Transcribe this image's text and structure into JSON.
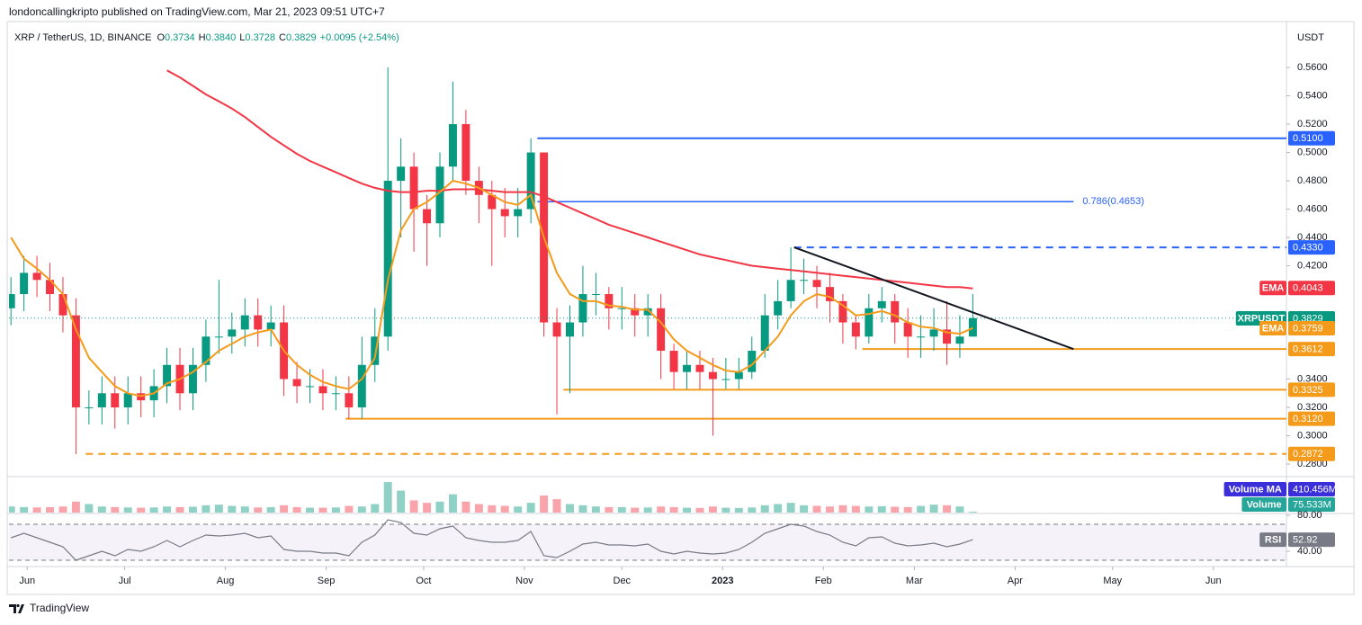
{
  "header": {
    "byline": "londoncallingkripto published on TradingView.com, Mar 21, 2023 09:51 UTC+7",
    "symbol": "XRP / TetherUS, 1D, BINANCE",
    "ohlc": [
      {
        "key": "O",
        "value": "0.3734"
      },
      {
        "key": "H",
        "value": "0.3840"
      },
      {
        "key": "L",
        "value": "0.3728"
      },
      {
        "key": "C",
        "value": "0.3829"
      }
    ],
    "change": "+0.0095 (+2.54%)",
    "currency": "USDT"
  },
  "footer": {
    "brand": "TradingView"
  },
  "chart_data": {
    "type": "candlestick",
    "up_color": "#089981",
    "down_color": "#f23645",
    "x": [
      -5,
      -1,
      3,
      7,
      11,
      15,
      19,
      23,
      27,
      31,
      35,
      39,
      43,
      47,
      51,
      55,
      59,
      63,
      67,
      71,
      75,
      79,
      83,
      87,
      91,
      95,
      99,
      103,
      107,
      111,
      115,
      119,
      123,
      127,
      131,
      135,
      139,
      143,
      147,
      151,
      155,
      159,
      163,
      167,
      171,
      175,
      179,
      183,
      187,
      191,
      195,
      199,
      203,
      207,
      211,
      215,
      219,
      223,
      227,
      231,
      235,
      239,
      243,
      247,
      251,
      255,
      259,
      263,
      267,
      271,
      275,
      279,
      283,
      287,
      291
    ],
    "xlim": [
      -5.6,
      387.5
    ],
    "xticks": [
      {
        "value": 0,
        "label": "Jun"
      },
      {
        "value": 30,
        "label": "Jul"
      },
      {
        "value": 61,
        "label": "Aug"
      },
      {
        "value": 92,
        "label": "Sep"
      },
      {
        "value": 122,
        "label": "Oct"
      },
      {
        "value": 153,
        "label": "Nov"
      },
      {
        "value": 183,
        "label": "Dec"
      },
      {
        "value": 214,
        "label": "2023"
      },
      {
        "value": 245,
        "label": "Feb"
      },
      {
        "value": 273,
        "label": "Mar"
      },
      {
        "value": 304,
        "label": "Apr"
      },
      {
        "value": 334,
        "label": "May"
      },
      {
        "value": 365,
        "label": "Jun"
      }
    ],
    "ylim": [
      0.2724,
      0.5886
    ],
    "yticks": [
      {
        "value": 0.56,
        "label": "0.5600"
      },
      {
        "value": 0.54,
        "label": "0.5400"
      },
      {
        "value": 0.52,
        "label": "0.5200"
      },
      {
        "value": 0.5,
        "label": "0.5000"
      },
      {
        "value": 0.48,
        "label": "0.4800"
      },
      {
        "value": 0.46,
        "label": "0.4600"
      },
      {
        "value": 0.44,
        "label": "0.4400"
      },
      {
        "value": 0.42,
        "label": "0.4200"
      },
      {
        "value": 0.34,
        "label": "0.3400"
      },
      {
        "value": 0.32,
        "label": "0.3200"
      },
      {
        "value": 0.3,
        "label": "0.3000"
      },
      {
        "value": 0.28,
        "label": "0.2800"
      }
    ],
    "candles": {
      "open": [
        0.39,
        0.4,
        0.415,
        0.41,
        0.4,
        0.385,
        0.32,
        0.32,
        0.33,
        0.32,
        0.33,
        0.325,
        0.335,
        0.35,
        0.33,
        0.35,
        0.37,
        0.37,
        0.375,
        0.385,
        0.375,
        0.38,
        0.34,
        0.335,
        0.335,
        0.33,
        0.33,
        0.32,
        0.35,
        0.37,
        0.48,
        0.49,
        0.46,
        0.45,
        0.49,
        0.52,
        0.48,
        0.47,
        0.46,
        0.455,
        0.46,
        0.5,
        0.38,
        0.37,
        0.38,
        0.4,
        0.4,
        0.39,
        0.39,
        0.385,
        0.39,
        0.36,
        0.345,
        0.35,
        0.345,
        0.34,
        0.34,
        0.345,
        0.36,
        0.385,
        0.395,
        0.41,
        0.41,
        0.405,
        0.395,
        0.38,
        0.37,
        0.39,
        0.395,
        0.38,
        0.37,
        0.37,
        0.375,
        0.365,
        0.37
      ],
      "high": [
        0.412,
        0.427,
        0.427,
        0.422,
        0.412,
        0.397,
        0.332,
        0.342,
        0.342,
        0.342,
        0.342,
        0.347,
        0.362,
        0.362,
        0.362,
        0.382,
        0.41,
        0.387,
        0.397,
        0.397,
        0.392,
        0.392,
        0.352,
        0.347,
        0.347,
        0.342,
        0.342,
        0.37,
        0.39,
        0.56,
        0.51,
        0.5,
        0.47,
        0.5,
        0.55,
        0.53,
        0.49,
        0.48,
        0.475,
        0.475,
        0.51,
        0.5,
        0.39,
        0.392,
        0.42,
        0.415,
        0.405,
        0.405,
        0.4,
        0.4,
        0.4,
        0.365,
        0.36,
        0.36,
        0.355,
        0.355,
        0.355,
        0.37,
        0.4,
        0.41,
        0.433,
        0.425,
        0.42,
        0.415,
        0.4,
        0.385,
        0.4,
        0.405,
        0.4,
        0.39,
        0.385,
        0.39,
        0.395,
        0.385,
        0.4
      ],
      "low": [
        0.378,
        0.388,
        0.398,
        0.388,
        0.373,
        0.287,
        0.308,
        0.308,
        0.305,
        0.308,
        0.313,
        0.313,
        0.323,
        0.318,
        0.318,
        0.338,
        0.358,
        0.358,
        0.363,
        0.363,
        0.363,
        0.328,
        0.323,
        0.323,
        0.318,
        0.318,
        0.312,
        0.312,
        0.338,
        0.36,
        0.44,
        0.43,
        0.42,
        0.44,
        0.48,
        0.47,
        0.45,
        0.42,
        0.44,
        0.44,
        0.45,
        0.37,
        0.315,
        0.33,
        0.37,
        0.385,
        0.375,
        0.375,
        0.37,
        0.37,
        0.34,
        0.333,
        0.333,
        0.333,
        0.3,
        0.333,
        0.333,
        0.34,
        0.355,
        0.375,
        0.39,
        0.4,
        0.39,
        0.38,
        0.365,
        0.361,
        0.365,
        0.38,
        0.365,
        0.355,
        0.355,
        0.36,
        0.35,
        0.355,
        0.37
      ],
      "close": [
        0.4,
        0.415,
        0.41,
        0.4,
        0.385,
        0.32,
        0.32,
        0.33,
        0.32,
        0.33,
        0.325,
        0.335,
        0.35,
        0.33,
        0.35,
        0.37,
        0.37,
        0.375,
        0.385,
        0.375,
        0.38,
        0.34,
        0.335,
        0.335,
        0.33,
        0.33,
        0.32,
        0.35,
        0.37,
        0.48,
        0.49,
        0.46,
        0.45,
        0.49,
        0.52,
        0.48,
        0.47,
        0.46,
        0.455,
        0.46,
        0.5,
        0.38,
        0.37,
        0.38,
        0.4,
        0.4,
        0.39,
        0.39,
        0.385,
        0.39,
        0.36,
        0.345,
        0.35,
        0.345,
        0.34,
        0.34,
        0.345,
        0.36,
        0.385,
        0.395,
        0.41,
        0.41,
        0.405,
        0.395,
        0.38,
        0.37,
        0.39,
        0.395,
        0.38,
        0.37,
        0.37,
        0.375,
        0.365,
        0.37,
        0.383
      ]
    },
    "series": [
      {
        "name": "EMA",
        "color": "#f23645",
        "values": [
          null,
          null,
          null,
          null,
          null,
          null,
          null,
          null,
          null,
          null,
          null,
          null,
          0.558,
          0.553,
          0.547,
          0.541,
          0.536,
          0.531,
          0.525,
          0.518,
          0.511,
          0.505,
          0.499,
          0.494,
          0.49,
          0.486,
          0.482,
          0.478,
          0.475,
          0.473,
          0.472,
          0.472,
          0.473,
          0.473,
          0.474,
          0.474,
          0.474,
          0.473,
          0.472,
          0.472,
          0.472,
          0.469,
          0.465,
          0.461,
          0.457,
          0.453,
          0.449,
          0.446,
          0.443,
          0.44,
          0.437,
          0.434,
          0.431,
          0.428,
          0.426,
          0.424,
          0.422,
          0.42,
          0.419,
          0.418,
          0.417,
          0.416,
          0.415,
          0.414,
          0.413,
          0.412,
          0.411,
          0.41,
          0.409,
          0.408,
          0.407,
          0.406,
          0.405,
          0.405,
          0.404
        ]
      },
      {
        "name": "EMA",
        "color": "#f59b1b",
        "values": [
          0.44,
          0.425,
          0.418,
          0.41,
          0.4,
          0.375,
          0.355,
          0.345,
          0.335,
          0.33,
          0.328,
          0.33,
          0.337,
          0.34,
          0.345,
          0.352,
          0.36,
          0.365,
          0.37,
          0.373,
          0.375,
          0.36,
          0.35,
          0.343,
          0.338,
          0.335,
          0.333,
          0.34,
          0.355,
          0.41,
          0.445,
          0.46,
          0.465,
          0.472,
          0.48,
          0.478,
          0.475,
          0.47,
          0.465,
          0.463,
          0.47,
          0.44,
          0.415,
          0.4,
          0.395,
          0.395,
          0.392,
          0.391,
          0.389,
          0.389,
          0.38,
          0.368,
          0.36,
          0.355,
          0.35,
          0.346,
          0.345,
          0.35,
          0.36,
          0.37,
          0.385,
          0.395,
          0.4,
          0.398,
          0.392,
          0.385,
          0.386,
          0.388,
          0.385,
          0.38,
          0.377,
          0.376,
          0.373,
          0.372,
          0.376
        ]
      }
    ],
    "levels": [
      {
        "value": 0.51,
        "label": "0.5100",
        "color": "#2962ff",
        "dash": false,
        "from": 157
      },
      {
        "value": 0.433,
        "label": "0.4330",
        "color": "#2962ff",
        "dash": true,
        "from": 236
      },
      {
        "value": 0.3612,
        "label": "0.3612",
        "color": "#f59b1b",
        "dash": false,
        "from": 257
      },
      {
        "value": 0.3325,
        "label": "0.3325",
        "color": "#f59b1b",
        "dash": false,
        "from": 165
      },
      {
        "value": 0.312,
        "label": "0.3120",
        "color": "#f59b1b",
        "dash": false,
        "from": 98
      },
      {
        "value": 0.2872,
        "label": "0.2872",
        "color": "#f59b1b",
        "dash": true,
        "from": 18
      }
    ],
    "fib": {
      "value": 0.4653,
      "label": "0.786(0.4653)",
      "color": "#2962ff",
      "from": 157,
      "to": 322
    },
    "trendline": {
      "x": [
        236,
        322
      ],
      "y": [
        0.433,
        0.3612
      ],
      "color": "#131722"
    },
    "price_badges": [
      {
        "name": "EMA",
        "label": "0.4043",
        "value": 0.4043,
        "color": "#f23645"
      },
      {
        "name": "XRPUSDT",
        "label": "0.3829",
        "value": 0.3829,
        "color": "#089981"
      },
      {
        "name": "EMA",
        "label": "0.3759",
        "value": 0.3759,
        "color": "#f59b1b"
      }
    ],
    "volume": {
      "ylim": [
        0,
        2800
      ],
      "values": [
        500,
        450,
        420,
        450,
        500,
        900,
        700,
        500,
        450,
        420,
        400,
        420,
        500,
        450,
        480,
        600,
        650,
        550,
        500,
        420,
        450,
        600,
        450,
        400,
        400,
        420,
        550,
        500,
        700,
        2500,
        1800,
        1000,
        800,
        900,
        1500,
        900,
        700,
        600,
        550,
        500,
        800,
        1400,
        1100,
        700,
        600,
        500,
        450,
        450,
        400,
        420,
        500,
        450,
        400,
        380,
        500,
        400,
        380,
        420,
        600,
        700,
        800,
        600,
        550,
        500,
        600,
        550,
        500,
        520,
        480,
        450,
        550,
        650,
        600,
        500,
        75.533
      ],
      "badges": [
        {
          "name": "Volume MA",
          "label": "410.456M",
          "color": "#3b2fd9"
        },
        {
          "name": "Volume",
          "label": "75.533M",
          "color": "#26a69a"
        }
      ]
    },
    "rsi": {
      "ylim": [
        27,
        81
      ],
      "color": "#787b86",
      "yticks": [
        {
          "value": 80,
          "label": "80.00"
        },
        {
          "value": 40,
          "label": "40.00"
        }
      ],
      "bands": [
        70,
        30
      ],
      "values": [
        55,
        60,
        55,
        50,
        45,
        30,
        35,
        40,
        35,
        42,
        40,
        45,
        52,
        45,
        52,
        58,
        57,
        58,
        60,
        55,
        57,
        42,
        40,
        40,
        38,
        38,
        35,
        50,
        58,
        75,
        72,
        60,
        58,
        65,
        68,
        55,
        52,
        50,
        50,
        52,
        62,
        35,
        33,
        40,
        48,
        50,
        47,
        47,
        46,
        48,
        40,
        37,
        40,
        38,
        37,
        38,
        42,
        50,
        60,
        65,
        70,
        68,
        62,
        58,
        50,
        46,
        55,
        56,
        49,
        46,
        47,
        49,
        45,
        48,
        52.92
      ],
      "badge": {
        "name": "RSI",
        "label": "52.92",
        "value": 52.92
      }
    }
  }
}
